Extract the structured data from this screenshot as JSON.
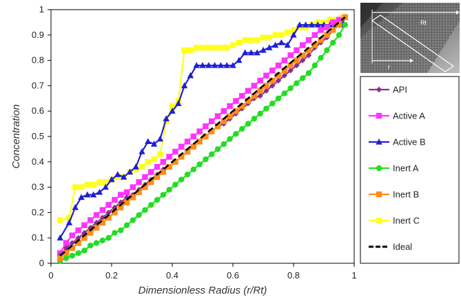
{
  "chart_data": {
    "type": "line",
    "xlabel": "Dimensionless Radius (r/Rt)",
    "ylabel": "Concentration",
    "xlim": [
      0,
      1
    ],
    "ylim": [
      0,
      1
    ],
    "xticks": [
      "0",
      "0.2",
      "0.4",
      "0.6",
      "0.8",
      "1"
    ],
    "yticks": [
      "0",
      "0.1",
      "0.2",
      "0.3",
      "0.4",
      "0.5",
      "0.6",
      "0.7",
      "0.8",
      "0.9",
      "1"
    ],
    "grid": false,
    "legend_position": "right",
    "inset_labels": {
      "outer": "Rt",
      "inner": "r"
    },
    "series": [
      {
        "name": "API",
        "color": "#8b2f8f",
        "marker": "diamond",
        "x": [
          0.03,
          0.05,
          0.07,
          0.09,
          0.11,
          0.13,
          0.15,
          0.17,
          0.19,
          0.21,
          0.23,
          0.25,
          0.27,
          0.29,
          0.31,
          0.33,
          0.35,
          0.37,
          0.39,
          0.41,
          0.43,
          0.45,
          0.47,
          0.49,
          0.51,
          0.53,
          0.55,
          0.57,
          0.59,
          0.61,
          0.63,
          0.65,
          0.67,
          0.69,
          0.71,
          0.73,
          0.75,
          0.77,
          0.79,
          0.81,
          0.83,
          0.85,
          0.87,
          0.89,
          0.91,
          0.93,
          0.95,
          0.97
        ],
        "y": [
          0.03,
          0.06,
          0.08,
          0.1,
          0.12,
          0.14,
          0.16,
          0.18,
          0.2,
          0.22,
          0.24,
          0.26,
          0.27,
          0.29,
          0.31,
          0.33,
          0.35,
          0.37,
          0.38,
          0.4,
          0.42,
          0.44,
          0.46,
          0.48,
          0.5,
          0.52,
          0.54,
          0.55,
          0.57,
          0.59,
          0.61,
          0.63,
          0.65,
          0.66,
          0.68,
          0.7,
          0.72,
          0.74,
          0.76,
          0.78,
          0.8,
          0.82,
          0.85,
          0.87,
          0.89,
          0.92,
          0.94,
          0.97
        ]
      },
      {
        "name": "Active A",
        "color": "#ff33ff",
        "marker": "square",
        "x": [
          0.03,
          0.05,
          0.07,
          0.09,
          0.11,
          0.13,
          0.15,
          0.17,
          0.19,
          0.21,
          0.23,
          0.25,
          0.27,
          0.29,
          0.31,
          0.33,
          0.35,
          0.37,
          0.39,
          0.41,
          0.43,
          0.45,
          0.47,
          0.49,
          0.51,
          0.53,
          0.55,
          0.57,
          0.59,
          0.61,
          0.63,
          0.65,
          0.67,
          0.69,
          0.71,
          0.73,
          0.75,
          0.77,
          0.79,
          0.81,
          0.83,
          0.85,
          0.87,
          0.89,
          0.91,
          0.93,
          0.95,
          0.97
        ],
        "y": [
          0.04,
          0.08,
          0.11,
          0.13,
          0.15,
          0.17,
          0.19,
          0.21,
          0.23,
          0.25,
          0.27,
          0.28,
          0.3,
          0.32,
          0.34,
          0.36,
          0.38,
          0.4,
          0.42,
          0.44,
          0.46,
          0.48,
          0.5,
          0.52,
          0.54,
          0.56,
          0.58,
          0.6,
          0.62,
          0.64,
          0.66,
          0.68,
          0.7,
          0.72,
          0.74,
          0.76,
          0.78,
          0.8,
          0.82,
          0.84,
          0.86,
          0.88,
          0.9,
          0.92,
          0.93,
          0.95,
          0.96,
          0.97
        ]
      },
      {
        "name": "Active B",
        "color": "#1f1fd6",
        "marker": "triangle",
        "x": [
          0.03,
          0.06,
          0.08,
          0.1,
          0.12,
          0.14,
          0.16,
          0.18,
          0.2,
          0.22,
          0.24,
          0.26,
          0.28,
          0.3,
          0.32,
          0.34,
          0.36,
          0.38,
          0.4,
          0.42,
          0.44,
          0.46,
          0.48,
          0.5,
          0.52,
          0.54,
          0.56,
          0.58,
          0.6,
          0.62,
          0.64,
          0.66,
          0.68,
          0.7,
          0.72,
          0.74,
          0.76,
          0.78,
          0.8,
          0.82,
          0.84,
          0.86,
          0.88,
          0.9,
          0.92,
          0.94,
          0.96,
          0.97
        ],
        "y": [
          0.1,
          0.16,
          0.22,
          0.26,
          0.27,
          0.27,
          0.28,
          0.3,
          0.33,
          0.35,
          0.34,
          0.36,
          0.38,
          0.44,
          0.48,
          0.47,
          0.49,
          0.57,
          0.6,
          0.63,
          0.7,
          0.74,
          0.78,
          0.78,
          0.78,
          0.78,
          0.78,
          0.78,
          0.78,
          0.8,
          0.83,
          0.83,
          0.83,
          0.84,
          0.85,
          0.86,
          0.87,
          0.86,
          0.9,
          0.94,
          0.94,
          0.94,
          0.94,
          0.94,
          0.94,
          0.94,
          0.94,
          0.97
        ]
      },
      {
        "name": "Inert A",
        "color": "#22dd22",
        "marker": "circle",
        "x": [
          0.03,
          0.05,
          0.07,
          0.09,
          0.11,
          0.13,
          0.15,
          0.17,
          0.19,
          0.21,
          0.23,
          0.25,
          0.27,
          0.29,
          0.31,
          0.33,
          0.35,
          0.37,
          0.39,
          0.41,
          0.43,
          0.45,
          0.47,
          0.49,
          0.51,
          0.53,
          0.55,
          0.57,
          0.59,
          0.61,
          0.63,
          0.65,
          0.67,
          0.69,
          0.71,
          0.73,
          0.75,
          0.77,
          0.79,
          0.81,
          0.83,
          0.85,
          0.87,
          0.89,
          0.91,
          0.93,
          0.95,
          0.97
        ],
        "y": [
          0.01,
          0.02,
          0.03,
          0.04,
          0.05,
          0.07,
          0.08,
          0.09,
          0.1,
          0.12,
          0.13,
          0.15,
          0.17,
          0.19,
          0.21,
          0.23,
          0.25,
          0.27,
          0.29,
          0.31,
          0.33,
          0.35,
          0.37,
          0.39,
          0.41,
          0.43,
          0.45,
          0.47,
          0.49,
          0.51,
          0.53,
          0.55,
          0.57,
          0.59,
          0.61,
          0.63,
          0.65,
          0.67,
          0.69,
          0.71,
          0.73,
          0.75,
          0.78,
          0.81,
          0.84,
          0.87,
          0.9,
          0.94
        ]
      },
      {
        "name": "Inert B",
        "color": "#ff8c1a",
        "marker": "square",
        "x": [
          0.03,
          0.05,
          0.07,
          0.09,
          0.11,
          0.13,
          0.15,
          0.17,
          0.19,
          0.21,
          0.23,
          0.25,
          0.27,
          0.29,
          0.31,
          0.33,
          0.35,
          0.37,
          0.39,
          0.41,
          0.43,
          0.45,
          0.47,
          0.49,
          0.51,
          0.53,
          0.55,
          0.57,
          0.59,
          0.61,
          0.63,
          0.65,
          0.67,
          0.69,
          0.71,
          0.73,
          0.75,
          0.77,
          0.79,
          0.81,
          0.83,
          0.85,
          0.87,
          0.89,
          0.91,
          0.93,
          0.95,
          0.97
        ],
        "y": [
          0.02,
          0.04,
          0.06,
          0.08,
          0.1,
          0.12,
          0.14,
          0.16,
          0.18,
          0.2,
          0.22,
          0.24,
          0.26,
          0.28,
          0.3,
          0.32,
          0.34,
          0.36,
          0.38,
          0.4,
          0.42,
          0.44,
          0.46,
          0.48,
          0.5,
          0.52,
          0.54,
          0.56,
          0.58,
          0.6,
          0.62,
          0.64,
          0.66,
          0.68,
          0.7,
          0.72,
          0.74,
          0.76,
          0.78,
          0.8,
          0.82,
          0.84,
          0.86,
          0.88,
          0.9,
          0.92,
          0.94,
          0.97
        ]
      },
      {
        "name": "Inert C",
        "color": "#ffff1a",
        "marker": "square",
        "x": [
          0.03,
          0.06,
          0.08,
          0.1,
          0.12,
          0.14,
          0.16,
          0.18,
          0.2,
          0.22,
          0.24,
          0.26,
          0.28,
          0.3,
          0.32,
          0.34,
          0.36,
          0.38,
          0.4,
          0.42,
          0.44,
          0.46,
          0.48,
          0.5,
          0.52,
          0.54,
          0.56,
          0.58,
          0.6,
          0.62,
          0.64,
          0.66,
          0.68,
          0.7,
          0.72,
          0.74,
          0.76,
          0.78,
          0.8,
          0.82,
          0.84,
          0.86,
          0.88,
          0.9,
          0.92,
          0.94,
          0.96,
          0.97
        ],
        "y": [
          0.17,
          0.18,
          0.3,
          0.3,
          0.31,
          0.31,
          0.32,
          0.32,
          0.33,
          0.34,
          0.34,
          0.36,
          0.37,
          0.38,
          0.4,
          0.41,
          0.43,
          0.56,
          0.62,
          0.64,
          0.84,
          0.84,
          0.85,
          0.85,
          0.85,
          0.85,
          0.85,
          0.85,
          0.86,
          0.87,
          0.88,
          0.88,
          0.88,
          0.89,
          0.89,
          0.9,
          0.9,
          0.91,
          0.92,
          0.93,
          0.93,
          0.94,
          0.95,
          0.95,
          0.96,
          0.96,
          0.97,
          0.97
        ]
      },
      {
        "name": "Ideal",
        "color": "#000000",
        "marker": "none",
        "dashed": true,
        "x": [
          0.03,
          0.97
        ],
        "y": [
          0.03,
          0.97
        ]
      }
    ]
  }
}
